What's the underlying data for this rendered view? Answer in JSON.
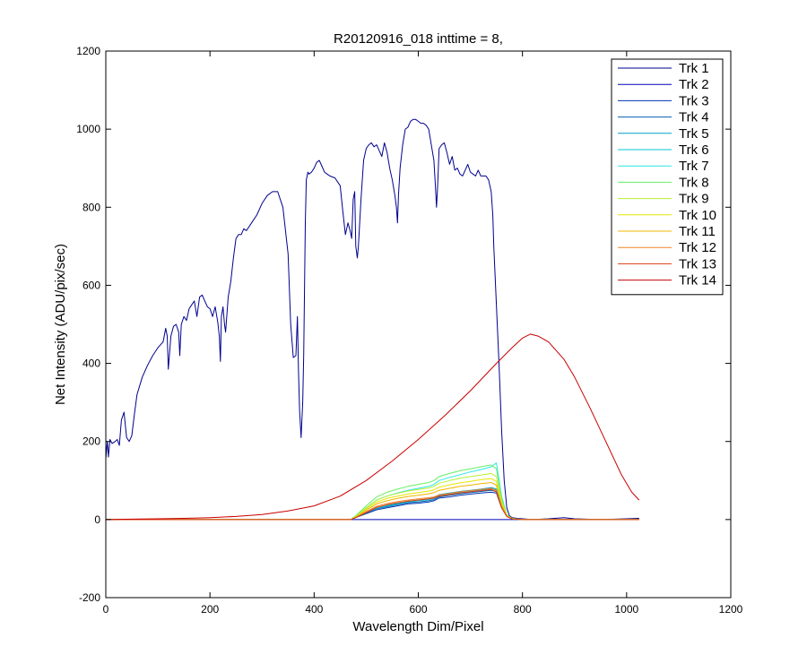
{
  "chart_data": {
    "type": "line",
    "title": "R20120916_018 inttime = 8,",
    "xlabel": "Wavelength Dim/Pixel",
    "ylabel": "Net Intensity (ADU/pix/sec)",
    "xlim": [
      0,
      1200
    ],
    "ylim": [
      -200,
      1200
    ],
    "xticks": [
      "0",
      "200",
      "400",
      "600",
      "800",
      "1000",
      "1200"
    ],
    "yticks": [
      "-200",
      "0",
      "200",
      "400",
      "600",
      "800",
      "1000",
      "1200"
    ],
    "grid": false,
    "legend_position": "top-right",
    "series": [
      {
        "name": "Trk 1",
        "color": "#00008f",
        "x": [
          0,
          3,
          5,
          8,
          12,
          18,
          22,
          26,
          30,
          35,
          40,
          45,
          50,
          55,
          60,
          70,
          80,
          90,
          100,
          110,
          115,
          118,
          120,
          125,
          130,
          135,
          140,
          142,
          145,
          150,
          155,
          160,
          165,
          170,
          175,
          180,
          185,
          190,
          195,
          200,
          205,
          210,
          215,
          218,
          220,
          222,
          225,
          228,
          230,
          235,
          240,
          245,
          250,
          255,
          260,
          265,
          270,
          280,
          290,
          300,
          310,
          320,
          330,
          340,
          350,
          355,
          360,
          365,
          368,
          370,
          372,
          375,
          378,
          380,
          383,
          385,
          388,
          390,
          395,
          400,
          405,
          410,
          415,
          420,
          425,
          430,
          440,
          450,
          455,
          460,
          465,
          470,
          472,
          475,
          478,
          480,
          483,
          485,
          490,
          495,
          500,
          505,
          510,
          515,
          520,
          525,
          530,
          535,
          540,
          545,
          550,
          555,
          558,
          560,
          562,
          565,
          570,
          575,
          580,
          585,
          590,
          595,
          600,
          605,
          610,
          615,
          620,
          625,
          630,
          633,
          635,
          637,
          640,
          645,
          650,
          655,
          660,
          665,
          670,
          675,
          680,
          685,
          690,
          695,
          700,
          705,
          710,
          715,
          720,
          725,
          730,
          735,
          740,
          743,
          745,
          750,
          755,
          760,
          765,
          770,
          775,
          780,
          790,
          800,
          820,
          850,
          880,
          900,
          950,
          1000,
          1024
        ],
        "y": [
          155,
          200,
          160,
          205,
          195,
          200,
          205,
          190,
          255,
          275,
          210,
          200,
          215,
          270,
          320,
          365,
          395,
          420,
          440,
          455,
          490,
          470,
          385,
          470,
          495,
          500,
          480,
          420,
          500,
          520,
          510,
          540,
          550,
          560,
          520,
          570,
          575,
          560,
          545,
          540,
          520,
          545,
          505,
          470,
          405,
          520,
          545,
          500,
          480,
          570,
          610,
          670,
          720,
          730,
          730,
          745,
          740,
          760,
          780,
          810,
          830,
          840,
          840,
          800,
          680,
          500,
          415,
          420,
          520,
          380,
          280,
          210,
          300,
          420,
          760,
          870,
          890,
          885,
          890,
          900,
          915,
          920,
          905,
          890,
          885,
          880,
          875,
          855,
          790,
          730,
          760,
          735,
          720,
          820,
          840,
          700,
          670,
          700,
          820,
          920,
          950,
          960,
          965,
          955,
          960,
          945,
          930,
          965,
          940,
          900,
          870,
          830,
          800,
          760,
          830,
          900,
          960,
          1000,
          1005,
          1020,
          1025,
          1025,
          1020,
          1015,
          1015,
          1010,
          1000,
          960,
          920,
          850,
          800,
          850,
          950,
          960,
          965,
          940,
          910,
          930,
          895,
          900,
          885,
          880,
          895,
          910,
          890,
          885,
          880,
          895,
          880,
          880,
          880,
          870,
          840,
          780,
          700,
          550,
          400,
          230,
          100,
          30,
          10,
          5,
          3,
          2,
          0,
          2,
          5,
          2,
          0,
          2,
          3
        ]
      },
      {
        "name": "Trk 2",
        "color": "#0000b4",
        "x": [
          0,
          200,
          400,
          470,
          500,
          600,
          700,
          740,
          760,
          770,
          780,
          800,
          1024
        ],
        "y": [
          0,
          0,
          0,
          0,
          0,
          0,
          0,
          0,
          0,
          0,
          0,
          0,
          0
        ]
      },
      {
        "name": "Trk 3",
        "color": "#0033b0",
        "x": [
          0,
          200,
          400,
          470,
          480,
          500,
          520,
          540,
          560,
          580,
          600,
          620,
          630,
          640,
          660,
          680,
          700,
          720,
          740,
          750,
          760,
          770,
          780,
          800,
          1024
        ],
        "y": [
          0,
          0,
          0,
          0,
          5,
          15,
          25,
          30,
          35,
          40,
          42,
          45,
          48,
          55,
          58,
          62,
          65,
          68,
          70,
          68,
          30,
          8,
          2,
          0,
          0
        ]
      },
      {
        "name": "Trk 4",
        "color": "#0060b4",
        "x": [
          0,
          200,
          400,
          470,
          480,
          500,
          520,
          540,
          560,
          580,
          600,
          620,
          630,
          640,
          660,
          680,
          700,
          720,
          740,
          750,
          760,
          770,
          780,
          800,
          1024
        ],
        "y": [
          0,
          0,
          0,
          0,
          5,
          17,
          28,
          33,
          38,
          43,
          45,
          48,
          51,
          58,
          62,
          66,
          69,
          72,
          75,
          72,
          32,
          8,
          2,
          0,
          0
        ]
      },
      {
        "name": "Trk 5",
        "color": "#00a0c8",
        "x": [
          0,
          200,
          400,
          470,
          480,
          500,
          520,
          540,
          560,
          580,
          600,
          620,
          630,
          640,
          660,
          680,
          700,
          720,
          740,
          750,
          760,
          770,
          780,
          800,
          1024
        ],
        "y": [
          0,
          0,
          0,
          0,
          5,
          19,
          31,
          37,
          42,
          47,
          50,
          53,
          56,
          64,
          68,
          72,
          75,
          78,
          82,
          78,
          35,
          9,
          2,
          0,
          0
        ]
      },
      {
        "name": "Trk 6",
        "color": "#00c8d2",
        "x": [
          0,
          200,
          400,
          470,
          480,
          500,
          520,
          540,
          560,
          580,
          600,
          620,
          630,
          640,
          660,
          680,
          700,
          720,
          740,
          750,
          760,
          770,
          780,
          800,
          1024
        ],
        "y": [
          0,
          0,
          0,
          0,
          5,
          18,
          29,
          35,
          40,
          45,
          48,
          51,
          54,
          61,
          65,
          70,
          73,
          76,
          79,
          76,
          34,
          9,
          2,
          0,
          0
        ]
      },
      {
        "name": "Trk 7",
        "color": "#2ce6e6",
        "x": [
          0,
          200,
          400,
          470,
          480,
          500,
          520,
          540,
          560,
          580,
          600,
          620,
          630,
          640,
          660,
          680,
          700,
          720,
          740,
          750,
          760,
          770,
          780,
          800,
          1024
        ],
        "y": [
          0,
          0,
          0,
          0,
          8,
          30,
          50,
          60,
          68,
          75,
          80,
          85,
          90,
          100,
          108,
          115,
          122,
          128,
          135,
          145,
          60,
          12,
          3,
          0,
          0
        ]
      },
      {
        "name": "Trk 8",
        "color": "#64f064",
        "x": [
          0,
          200,
          400,
          470,
          480,
          500,
          520,
          540,
          560,
          580,
          600,
          620,
          630,
          640,
          660,
          680,
          700,
          720,
          740,
          750,
          760,
          770,
          780,
          800,
          1024
        ],
        "y": [
          0,
          0,
          0,
          0,
          10,
          35,
          58,
          70,
          78,
          85,
          90,
          95,
          100,
          110,
          118,
          125,
          130,
          135,
          140,
          130,
          55,
          12,
          3,
          0,
          0
        ]
      },
      {
        "name": "Trk 9",
        "color": "#b4f032",
        "x": [
          0,
          200,
          400,
          470,
          480,
          500,
          520,
          540,
          560,
          580,
          600,
          620,
          630,
          640,
          660,
          680,
          700,
          720,
          740,
          750,
          760,
          770,
          780,
          800,
          1024
        ],
        "y": [
          0,
          0,
          0,
          0,
          8,
          30,
          50,
          60,
          67,
          73,
          77,
          81,
          85,
          93,
          100,
          106,
          110,
          114,
          118,
          110,
          48,
          11,
          3,
          0,
          0
        ]
      },
      {
        "name": "Trk 10",
        "color": "#e6e600",
        "x": [
          0,
          200,
          400,
          470,
          480,
          500,
          520,
          540,
          560,
          580,
          600,
          620,
          630,
          640,
          660,
          680,
          700,
          720,
          740,
          750,
          760,
          770,
          780,
          800,
          1024
        ],
        "y": [
          0,
          0,
          0,
          0,
          7,
          27,
          45,
          54,
          60,
          65,
          69,
          73,
          76,
          83,
          89,
          94,
          98,
          102,
          105,
          98,
          42,
          10,
          2,
          0,
          0
        ]
      },
      {
        "name": "Trk 11",
        "color": "#f0b400",
        "x": [
          0,
          200,
          400,
          470,
          480,
          500,
          520,
          540,
          560,
          580,
          600,
          620,
          630,
          640,
          660,
          680,
          700,
          720,
          740,
          750,
          760,
          770,
          780,
          800,
          1024
        ],
        "y": [
          0,
          0,
          0,
          0,
          6,
          24,
          40,
          48,
          54,
          59,
          62,
          66,
          69,
          75,
          80,
          85,
          88,
          92,
          95,
          88,
          38,
          9,
          2,
          0,
          0
        ]
      },
      {
        "name": "Trk 12",
        "color": "#f08228",
        "x": [
          0,
          200,
          400,
          470,
          480,
          500,
          520,
          540,
          560,
          580,
          600,
          620,
          630,
          640,
          660,
          680,
          700,
          720,
          740,
          750,
          760,
          770,
          780,
          800,
          1024
        ],
        "y": [
          0,
          0,
          0,
          0,
          5,
          20,
          34,
          41,
          46,
          50,
          53,
          56,
          58,
          63,
          67,
          71,
          74,
          77,
          80,
          74,
          32,
          8,
          2,
          0,
          0
        ]
      },
      {
        "name": "Trk 13",
        "color": "#dc3c14",
        "x": [
          0,
          200,
          400,
          470,
          480,
          500,
          520,
          540,
          560,
          580,
          600,
          620,
          630,
          640,
          660,
          680,
          700,
          720,
          740,
          750,
          760,
          770,
          780,
          800,
          1024
        ],
        "y": [
          0,
          0,
          0,
          0,
          5,
          18,
          31,
          38,
          43,
          47,
          50,
          53,
          55,
          60,
          64,
          68,
          71,
          74,
          77,
          71,
          30,
          8,
          2,
          0,
          0
        ]
      },
      {
        "name": "Trk 14",
        "color": "#c80000",
        "x": [
          0,
          50,
          100,
          150,
          200,
          250,
          300,
          350,
          400,
          450,
          500,
          550,
          600,
          650,
          700,
          750,
          780,
          800,
          815,
          830,
          850,
          880,
          900,
          930,
          960,
          990,
          1010,
          1024
        ],
        "y": [
          0,
          1,
          2,
          3,
          5,
          8,
          13,
          22,
          35,
          60,
          100,
          150,
          205,
          265,
          330,
          400,
          440,
          465,
          475,
          470,
          455,
          410,
          365,
          285,
          200,
          115,
          70,
          50
        ]
      }
    ]
  }
}
